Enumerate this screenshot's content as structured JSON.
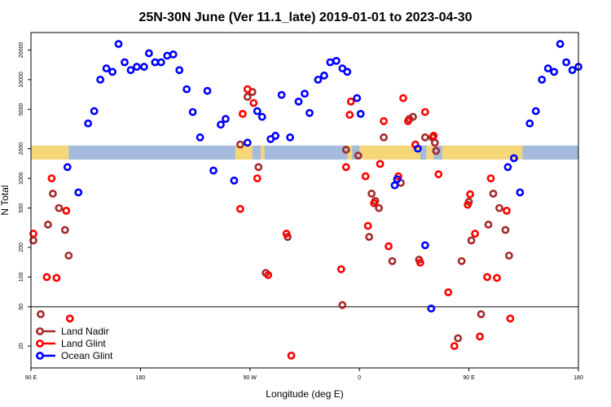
{
  "chart_data": {
    "type": "scatter",
    "title": "25N-30N June (Ver 11.1_late)   2019-01-01 to 2023-04-30",
    "xlabel": "Longitude (deg E)",
    "ylabel": "N Total",
    "y_scale": "log",
    "xlim": [
      90,
      540
    ],
    "ylim": [
      12,
      30000
    ],
    "x_ticks": [
      {
        "value": 90,
        "label": "90 E"
      },
      {
        "value": 180,
        "label": "180"
      },
      {
        "value": 270,
        "label": "90 W"
      },
      {
        "value": 360,
        "label": "0"
      },
      {
        "value": 450,
        "label": "90 E"
      },
      {
        "value": 540,
        "label": "180"
      }
    ],
    "y_ticks": [
      {
        "value": 20,
        "label": "20"
      },
      {
        "value": 50,
        "label": "50"
      },
      {
        "value": 100,
        "label": "100"
      },
      {
        "value": 200,
        "label": "200"
      },
      {
        "value": 500,
        "label": "500"
      },
      {
        "value": 1000,
        "label": "1000"
      },
      {
        "value": 2000,
        "label": "2000"
      },
      {
        "value": 5000,
        "label": "5000"
      },
      {
        "value": 10000,
        "label": "10000"
      },
      {
        "value": 20000,
        "label": "20000"
      }
    ],
    "reference_line": 50,
    "legend_position": "bottom-left",
    "background_band": {
      "ymin": 1550,
      "ymax": 2150,
      "colors": {
        "land": "#f5d77a",
        "ocean": "#a5bbdc"
      },
      "segments": [
        {
          "from": 90,
          "to": 121,
          "type": "land"
        },
        {
          "from": 121,
          "to": 258,
          "type": "ocean"
        },
        {
          "from": 258,
          "to": 272,
          "type": "land"
        },
        {
          "from": 272,
          "to": 279,
          "type": "ocean"
        },
        {
          "from": 279,
          "to": 282,
          "type": "land"
        },
        {
          "from": 282,
          "to": 350,
          "type": "ocean"
        },
        {
          "from": 350,
          "to": 354,
          "type": "land"
        },
        {
          "from": 354,
          "to": 360,
          "type": "ocean"
        },
        {
          "from": 360,
          "to": 410,
          "type": "land"
        },
        {
          "from": 410,
          "to": 415,
          "type": "ocean"
        },
        {
          "from": 415,
          "to": 421,
          "type": "land"
        },
        {
          "from": 421,
          "to": 428,
          "type": "ocean"
        },
        {
          "from": 428,
          "to": 494,
          "type": "land"
        },
        {
          "from": 494,
          "to": 540,
          "type": "ocean"
        }
      ]
    },
    "series": [
      {
        "name": "Land Nadir",
        "color": "#a52a2a",
        "points": [
          [
            92,
            235
          ],
          [
            98,
            42
          ],
          [
            104,
            340
          ],
          [
            108,
            700
          ],
          [
            113,
            500
          ],
          [
            118,
            300
          ],
          [
            121,
            165
          ],
          [
            262,
            2200
          ],
          [
            268,
            6700
          ],
          [
            272,
            7500
          ],
          [
            277,
            1300
          ],
          [
            283,
            110
          ],
          [
            301,
            255
          ],
          [
            346,
            52
          ],
          [
            349,
            1950
          ],
          [
            359,
            1700
          ],
          [
            368,
            255
          ],
          [
            370,
            700
          ],
          [
            373,
            590
          ],
          [
            376,
            500
          ],
          [
            380,
            2600
          ],
          [
            387,
            145
          ],
          [
            394,
            900
          ],
          [
            401,
            4000
          ],
          [
            404,
            4200
          ],
          [
            409,
            150
          ],
          [
            414,
            2600
          ],
          [
            420,
            2600
          ],
          [
            422,
            2300
          ],
          [
            423,
            1900
          ],
          [
            441,
            24
          ],
          [
            444,
            145
          ],
          [
            450,
            580
          ],
          [
            452,
            235
          ],
          [
            460,
            42
          ],
          [
            466,
            340
          ],
          [
            470,
            700
          ],
          [
            475,
            500
          ],
          [
            480,
            300
          ],
          [
            483,
            165
          ]
        ]
      },
      {
        "name": "Land Glint",
        "color": "#ff0000",
        "points": [
          [
            92,
            275
          ],
          [
            103,
            100
          ],
          [
            107,
            1000
          ],
          [
            111,
            98
          ],
          [
            119,
            470
          ],
          [
            122,
            38
          ],
          [
            262,
            490
          ],
          [
            264,
            4500
          ],
          [
            268,
            8000
          ],
          [
            273,
            5800
          ],
          [
            276,
            1000
          ],
          [
            285,
            105
          ],
          [
            300,
            275
          ],
          [
            304,
            16
          ],
          [
            345,
            120
          ],
          [
            349,
            1300
          ],
          [
            352,
            4400
          ],
          [
            353,
            6000
          ],
          [
            365,
            1050
          ],
          [
            367,
            330
          ],
          [
            372,
            560
          ],
          [
            377,
            1400
          ],
          [
            380,
            3800
          ],
          [
            384,
            205
          ],
          [
            392,
            1050
          ],
          [
            396,
            6500
          ],
          [
            400,
            3800
          ],
          [
            406,
            2200
          ],
          [
            410,
            140
          ],
          [
            414,
            4700
          ],
          [
            421,
            2700
          ],
          [
            425,
            1100
          ],
          [
            433,
            70
          ],
          [
            438,
            20
          ],
          [
            449,
            540
          ],
          [
            451,
            690
          ],
          [
            455,
            275
          ],
          [
            459,
            25
          ],
          [
            465,
            100
          ],
          [
            468,
            1000
          ],
          [
            473,
            98
          ],
          [
            481,
            470
          ],
          [
            484,
            38
          ]
        ]
      },
      {
        "name": "Ocean Glint",
        "color": "#0000ff",
        "points": [
          [
            120,
            1300
          ],
          [
            129,
            720
          ],
          [
            137,
            3600
          ],
          [
            142,
            4800
          ],
          [
            147,
            10000
          ],
          [
            152,
            13000
          ],
          [
            157,
            12000
          ],
          [
            162,
            23000
          ],
          [
            167,
            15000
          ],
          [
            172,
            12500
          ],
          [
            177,
            13500
          ],
          [
            183,
            13500
          ],
          [
            187,
            18500
          ],
          [
            192,
            15000
          ],
          [
            197,
            15000
          ],
          [
            202,
            17500
          ],
          [
            207,
            18000
          ],
          [
            212,
            12500
          ],
          [
            218,
            8000
          ],
          [
            223,
            4700
          ],
          [
            229,
            2600
          ],
          [
            235,
            7700
          ],
          [
            240,
            1200
          ],
          [
            246,
            3500
          ],
          [
            250,
            4000
          ],
          [
            257,
            950
          ],
          [
            268,
            2300
          ],
          [
            276,
            4800
          ],
          [
            280,
            4200
          ],
          [
            287,
            2500
          ],
          [
            291,
            2700
          ],
          [
            296,
            7000
          ],
          [
            303,
            2600
          ],
          [
            310,
            6000
          ],
          [
            315,
            7200
          ],
          [
            319,
            4600
          ],
          [
            326,
            10000
          ],
          [
            331,
            11000
          ],
          [
            336,
            15000
          ],
          [
            341,
            15500
          ],
          [
            346,
            13000
          ],
          [
            350,
            12000
          ],
          [
            358,
            6500
          ],
          [
            361,
            4500
          ],
          [
            389,
            850
          ],
          [
            391,
            980
          ],
          [
            408,
            2000
          ],
          [
            414,
            210
          ],
          [
            419,
            48
          ],
          [
            482,
            1300
          ],
          [
            487,
            1600
          ],
          [
            492,
            720
          ],
          [
            500,
            3600
          ],
          [
            505,
            4800
          ],
          [
            510,
            10000
          ],
          [
            515,
            13000
          ],
          [
            520,
            12000
          ],
          [
            525,
            23000
          ],
          [
            530,
            15000
          ],
          [
            535,
            12500
          ],
          [
            540,
            13500
          ]
        ]
      }
    ]
  }
}
